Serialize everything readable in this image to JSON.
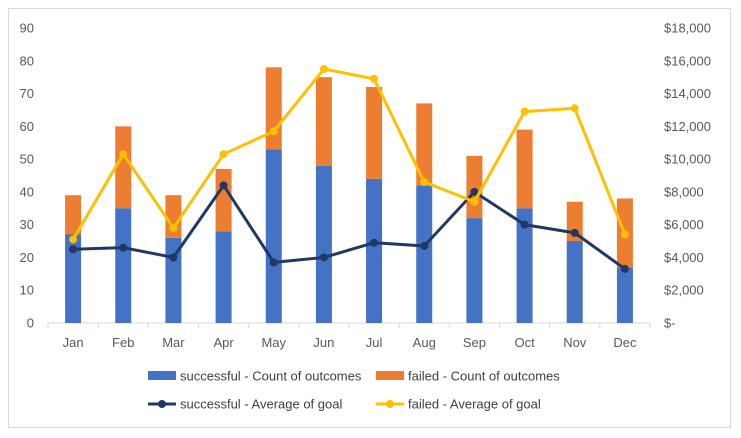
{
  "chart_data": {
    "type": "bar",
    "stacked": true,
    "categories": [
      "Jan",
      "Feb",
      "Mar",
      "Apr",
      "May",
      "Jun",
      "Jul",
      "Aug",
      "Sep",
      "Oct",
      "Nov",
      "Dec"
    ],
    "ylim": [
      0,
      90
    ],
    "y_ticks": [
      0,
      10,
      20,
      30,
      40,
      50,
      60,
      70,
      80,
      90
    ],
    "y2lim": [
      0,
      18000
    ],
    "y2_ticks": [
      0,
      2000,
      4000,
      6000,
      8000,
      10000,
      12000,
      14000,
      16000,
      18000
    ],
    "y2_tick_labels": [
      "$-",
      "$2,000",
      "$4,000",
      "$6,000",
      "$8,000",
      "$10,000",
      "$12,000",
      "$14,000",
      "$16,000",
      "$18,000"
    ],
    "grid": false,
    "legend_position": "bottom",
    "series": [
      {
        "name": "successful - Count of outcomes",
        "kind": "bar",
        "axis": "left",
        "color": "#4472c4",
        "values": [
          27,
          35,
          26,
          28,
          53,
          48,
          44,
          42,
          32,
          35,
          25,
          17
        ]
      },
      {
        "name": "failed - Count of outcomes",
        "kind": "bar",
        "axis": "left",
        "color": "#ed7d31",
        "values": [
          12,
          25,
          13,
          19,
          25,
          27,
          28,
          25,
          19,
          24,
          12,
          21
        ]
      },
      {
        "name": "successful - Average of goal",
        "kind": "line",
        "axis": "right",
        "color": "#203864",
        "values": [
          4500,
          4600,
          4000,
          8400,
          3700,
          4000,
          4900,
          4700,
          8000,
          6000,
          5500,
          3300
        ]
      },
      {
        "name": "failed - Average of goal",
        "kind": "line",
        "axis": "right",
        "color": "#ffc000",
        "values": [
          5100,
          10300,
          5800,
          10300,
          11700,
          15500,
          14900,
          8600,
          7400,
          12900,
          13100,
          5400
        ]
      }
    ]
  }
}
